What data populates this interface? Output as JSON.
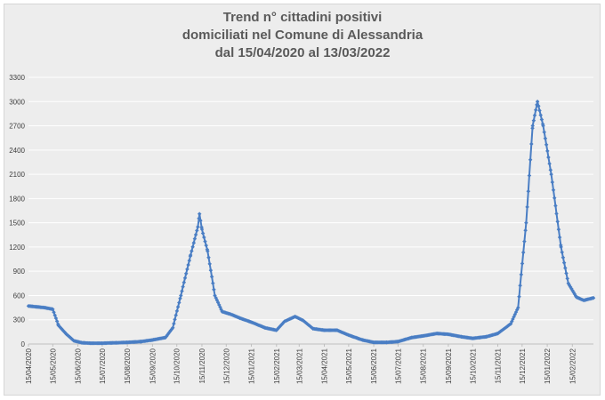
{
  "chart_data": {
    "type": "line",
    "title_lines": [
      "Trend n° cittadini positivi",
      "domiciliati nel Comune di Alessandria",
      "dal 15/04/2020 al 13/03/2022"
    ],
    "xlabel": "",
    "ylabel": "",
    "ylim": [
      0,
      3300
    ],
    "yticks": [
      0,
      300,
      600,
      900,
      1200,
      1500,
      1800,
      2100,
      2400,
      2700,
      3000,
      3300
    ],
    "x_range": [
      "15/04/2020",
      "13/03/2022"
    ],
    "xticks": [
      "15/04/2020",
      "15/05/2020",
      "15/06/2020",
      "15/07/2020",
      "15/08/2020",
      "15/09/2020",
      "15/10/2020",
      "15/11/2020",
      "15/12/2020",
      "15/01/2021",
      "15/02/2021",
      "15/03/2021",
      "15/04/2021",
      "15/05/2021",
      "15/06/2021",
      "15/07/2021",
      "15/08/2021",
      "15/09/2021",
      "15/10/2021",
      "15/11/2021",
      "15/12/2021",
      "15/01/2022",
      "15/02/2022"
    ],
    "grid": true,
    "legend": "none",
    "series_color": "#4a7ec4",
    "series": [
      {
        "name": "",
        "points": [
          [
            "15/04/2020",
            470
          ],
          [
            "25/04/2020",
            460
          ],
          [
            "05/05/2020",
            450
          ],
          [
            "15/05/2020",
            430
          ],
          [
            "22/05/2020",
            230
          ],
          [
            "01/06/2020",
            120
          ],
          [
            "10/06/2020",
            40
          ],
          [
            "20/06/2020",
            15
          ],
          [
            "01/07/2020",
            10
          ],
          [
            "15/07/2020",
            10
          ],
          [
            "01/08/2020",
            15
          ],
          [
            "15/08/2020",
            20
          ],
          [
            "01/09/2020",
            30
          ],
          [
            "15/09/2020",
            50
          ],
          [
            "01/10/2020",
            80
          ],
          [
            "10/10/2020",
            200
          ],
          [
            "20/10/2020",
            600
          ],
          [
            "01/11/2020",
            1100
          ],
          [
            "10/11/2020",
            1450
          ],
          [
            "12/11/2020",
            1610
          ],
          [
            "15/11/2020",
            1420
          ],
          [
            "22/11/2020",
            1150
          ],
          [
            "01/12/2020",
            600
          ],
          [
            "10/12/2020",
            400
          ],
          [
            "20/12/2020",
            370
          ],
          [
            "01/01/2021",
            320
          ],
          [
            "15/01/2021",
            270
          ],
          [
            "01/02/2021",
            200
          ],
          [
            "15/02/2021",
            170
          ],
          [
            "25/02/2021",
            280
          ],
          [
            "10/03/2021",
            340
          ],
          [
            "20/03/2021",
            290
          ],
          [
            "01/04/2021",
            190
          ],
          [
            "15/04/2021",
            170
          ],
          [
            "01/05/2021",
            170
          ],
          [
            "15/05/2021",
            110
          ],
          [
            "01/06/2021",
            50
          ],
          [
            "15/06/2021",
            20
          ],
          [
            "01/07/2021",
            20
          ],
          [
            "15/07/2021",
            30
          ],
          [
            "01/08/2021",
            80
          ],
          [
            "15/08/2021",
            100
          ],
          [
            "01/09/2021",
            130
          ],
          [
            "15/09/2021",
            120
          ],
          [
            "01/10/2021",
            90
          ],
          [
            "15/10/2021",
            70
          ],
          [
            "01/11/2021",
            90
          ],
          [
            "15/11/2021",
            130
          ],
          [
            "01/12/2021",
            250
          ],
          [
            "10/12/2021",
            450
          ],
          [
            "20/12/2021",
            1500
          ],
          [
            "28/12/2021",
            2700
          ],
          [
            "03/01/2022",
            3000
          ],
          [
            "10/01/2022",
            2700
          ],
          [
            "20/01/2022",
            2100
          ],
          [
            "01/02/2022",
            1200
          ],
          [
            "10/02/2022",
            750
          ],
          [
            "20/02/2022",
            580
          ],
          [
            "01/03/2022",
            540
          ],
          [
            "13/03/2022",
            570
          ]
        ]
      }
    ]
  }
}
